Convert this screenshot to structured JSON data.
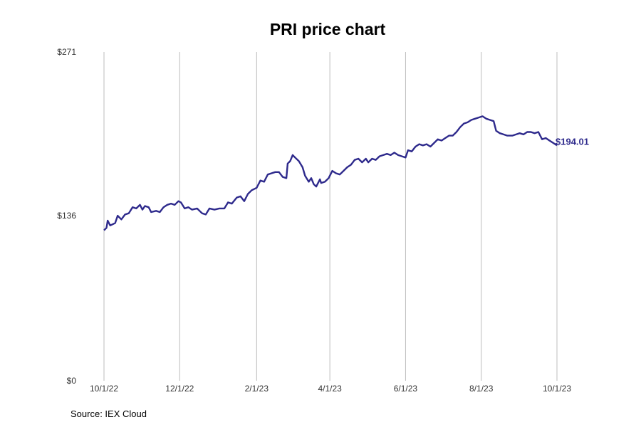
{
  "chart_data": {
    "type": "line",
    "title": "PRI price chart",
    "xlabel": "",
    "ylabel": "",
    "x_ticks": [
      "10/1/22",
      "12/1/22",
      "2/1/23",
      "4/1/23",
      "6/1/23",
      "8/1/23",
      "10/1/23"
    ],
    "y_ticks": [
      "$0",
      "$136",
      "$271"
    ],
    "ylim": [
      0,
      271
    ],
    "xlim": [
      "2022-10-01",
      "2023-10-01"
    ],
    "grid": "vertical",
    "line_color": "#2e2a8c",
    "end_label": "$194.01",
    "series": [
      {
        "points": [
          [
            "2022-10-01",
            124
          ],
          [
            "2022-10-03",
            126
          ],
          [
            "2022-10-04",
            132
          ],
          [
            "2022-10-06",
            128
          ],
          [
            "2022-10-10",
            130
          ],
          [
            "2022-10-12",
            136
          ],
          [
            "2022-10-15",
            133
          ],
          [
            "2022-10-18",
            137
          ],
          [
            "2022-10-21",
            138
          ],
          [
            "2022-10-24",
            143
          ],
          [
            "2022-10-27",
            142
          ],
          [
            "2022-10-30",
            145
          ],
          [
            "2022-11-01",
            141
          ],
          [
            "2022-11-03",
            144
          ],
          [
            "2022-11-06",
            143
          ],
          [
            "2022-11-08",
            139
          ],
          [
            "2022-11-12",
            140
          ],
          [
            "2022-11-15",
            139
          ],
          [
            "2022-11-18",
            143
          ],
          [
            "2022-11-21",
            145
          ],
          [
            "2022-11-24",
            146
          ],
          [
            "2022-11-27",
            145
          ],
          [
            "2022-11-30",
            148
          ],
          [
            "2022-12-02",
            147
          ],
          [
            "2022-12-05",
            142
          ],
          [
            "2022-12-08",
            143
          ],
          [
            "2022-12-11",
            141
          ],
          [
            "2022-12-15",
            142
          ],
          [
            "2022-12-19",
            138
          ],
          [
            "2022-12-22",
            137
          ],
          [
            "2022-12-25",
            142
          ],
          [
            "2022-12-29",
            141
          ],
          [
            "2023-01-02",
            142
          ],
          [
            "2023-01-06",
            142
          ],
          [
            "2023-01-09",
            147
          ],
          [
            "2023-01-12",
            146
          ],
          [
            "2023-01-16",
            151
          ],
          [
            "2023-01-19",
            152
          ],
          [
            "2023-01-22",
            148
          ],
          [
            "2023-01-25",
            154
          ],
          [
            "2023-01-28",
            157
          ],
          [
            "2023-02-01",
            159
          ],
          [
            "2023-02-04",
            165
          ],
          [
            "2023-02-07",
            164
          ],
          [
            "2023-02-10",
            170
          ],
          [
            "2023-02-13",
            171
          ],
          [
            "2023-02-16",
            172
          ],
          [
            "2023-02-19",
            172
          ],
          [
            "2023-02-22",
            168
          ],
          [
            "2023-02-25",
            167
          ],
          [
            "2023-02-26",
            179
          ],
          [
            "2023-02-28",
            181
          ],
          [
            "2023-03-02",
            186
          ],
          [
            "2023-03-04",
            184
          ],
          [
            "2023-03-07",
            181
          ],
          [
            "2023-03-10",
            176
          ],
          [
            "2023-03-12",
            169
          ],
          [
            "2023-03-15",
            164
          ],
          [
            "2023-03-17",
            167
          ],
          [
            "2023-03-19",
            162
          ],
          [
            "2023-03-21",
            160
          ],
          [
            "2023-03-24",
            166
          ],
          [
            "2023-03-25",
            163
          ],
          [
            "2023-03-28",
            164
          ],
          [
            "2023-03-31",
            167
          ],
          [
            "2023-04-03",
            173
          ],
          [
            "2023-04-06",
            171
          ],
          [
            "2023-04-09",
            170
          ],
          [
            "2023-04-12",
            173
          ],
          [
            "2023-04-15",
            176
          ],
          [
            "2023-04-18",
            178
          ],
          [
            "2023-04-21",
            182
          ],
          [
            "2023-04-24",
            183
          ],
          [
            "2023-04-27",
            180
          ],
          [
            "2023-04-30",
            183
          ],
          [
            "2023-05-02",
            180
          ],
          [
            "2023-05-05",
            183
          ],
          [
            "2023-05-08",
            182
          ],
          [
            "2023-05-11",
            185
          ],
          [
            "2023-05-14",
            186
          ],
          [
            "2023-05-17",
            187
          ],
          [
            "2023-05-20",
            186
          ],
          [
            "2023-05-23",
            188
          ],
          [
            "2023-05-26",
            186
          ],
          [
            "2023-05-29",
            185
          ],
          [
            "2023-06-01",
            184
          ],
          [
            "2023-06-03",
            190
          ],
          [
            "2023-06-06",
            189
          ],
          [
            "2023-06-09",
            193
          ],
          [
            "2023-06-12",
            195
          ],
          [
            "2023-06-15",
            194
          ],
          [
            "2023-06-18",
            195
          ],
          [
            "2023-06-21",
            193
          ],
          [
            "2023-06-24",
            196
          ],
          [
            "2023-06-27",
            199
          ],
          [
            "2023-06-30",
            198
          ],
          [
            "2023-07-03",
            200
          ],
          [
            "2023-07-06",
            202
          ],
          [
            "2023-07-09",
            202
          ],
          [
            "2023-07-12",
            205
          ],
          [
            "2023-07-15",
            209
          ],
          [
            "2023-07-18",
            212
          ],
          [
            "2023-07-21",
            213
          ],
          [
            "2023-07-24",
            215
          ],
          [
            "2023-07-27",
            216
          ],
          [
            "2023-07-30",
            217
          ],
          [
            "2023-08-02",
            218
          ],
          [
            "2023-08-05",
            216
          ],
          [
            "2023-08-08",
            215
          ],
          [
            "2023-08-11",
            214
          ],
          [
            "2023-08-13",
            206
          ],
          [
            "2023-08-16",
            204
          ],
          [
            "2023-08-19",
            203
          ],
          [
            "2023-08-22",
            202
          ],
          [
            "2023-08-26",
            202
          ],
          [
            "2023-08-29",
            203
          ],
          [
            "2023-09-01",
            204
          ],
          [
            "2023-09-04",
            203
          ],
          [
            "2023-09-07",
            205
          ],
          [
            "2023-09-10",
            205
          ],
          [
            "2023-09-13",
            204
          ],
          [
            "2023-09-16",
            205
          ],
          [
            "2023-09-19",
            199
          ],
          [
            "2023-09-22",
            200
          ],
          [
            "2023-09-25",
            198
          ],
          [
            "2023-09-28",
            196
          ],
          [
            "2023-10-01",
            194.01
          ]
        ]
      }
    ]
  },
  "source_text": "Source: IEX Cloud"
}
